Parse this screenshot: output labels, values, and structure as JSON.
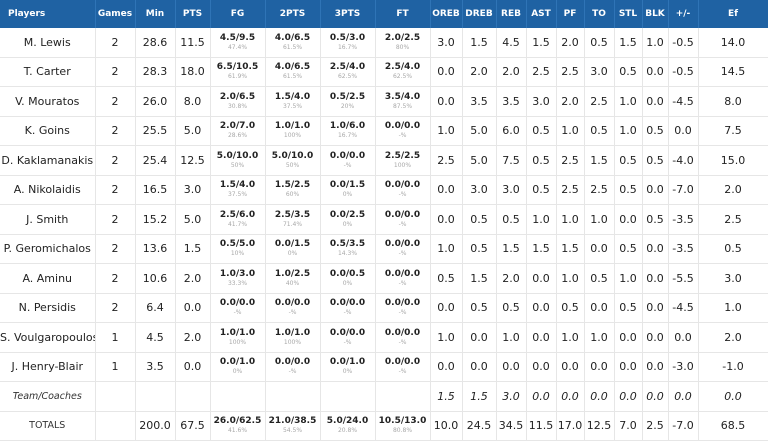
{
  "headers": [
    "Players",
    "Games",
    "Min",
    "PTS",
    "FG",
    "2PTS",
    "3PTS",
    "FT",
    "OREB",
    "DREB",
    "REB",
    "AST",
    "PF",
    "TO",
    "STL",
    "BLK",
    "+/-",
    "Ef"
  ],
  "players": [
    {
      "name": "M. Lewis",
      "games": "2",
      "min": "28.6",
      "pts": "11.5",
      "fg": "4.5/9.5",
      "fg_pct": "47.4%",
      "p2": "4.0/6.5",
      "p2_pct": "61.5%",
      "p3": "0.5/3.0",
      "p3_pct": "16.7%",
      "ft": "2.0/2.5",
      "ft_pct": "80%",
      "oreb": "3.0",
      "dreb": "1.5",
      "reb": "4.5",
      "ast": "1.5",
      "pf": "2.0",
      "to": "0.5",
      "stl": "1.5",
      "blk": "1.0",
      "pm": "-0.5",
      "ef": "14.0"
    },
    {
      "name": "T. Carter",
      "games": "2",
      "min": "28.3",
      "pts": "18.0",
      "fg": "6.5/10.5",
      "fg_pct": "61.9%",
      "p2": "4.0/6.5",
      "p2_pct": "61.5%",
      "p3": "2.5/4.0",
      "p3_pct": "62.5%",
      "ft": "2.5/4.0",
      "ft_pct": "62.5%",
      "oreb": "0.0",
      "dreb": "2.0",
      "reb": "2.0",
      "ast": "2.5",
      "pf": "2.5",
      "to": "3.0",
      "stl": "0.5",
      "blk": "0.0",
      "pm": "-0.5",
      "ef": "14.5"
    },
    {
      "name": "V. Mouratos",
      "games": "2",
      "min": "26.0",
      "pts": "8.0",
      "fg": "2.0/6.5",
      "fg_pct": "30.8%",
      "p2": "1.5/4.0",
      "p2_pct": "37.5%",
      "p3": "0.5/2.5",
      "p3_pct": "20%",
      "ft": "3.5/4.0",
      "ft_pct": "87.5%",
      "oreb": "0.0",
      "dreb": "3.5",
      "reb": "3.5",
      "ast": "3.0",
      "pf": "2.0",
      "to": "2.5",
      "stl": "1.0",
      "blk": "0.0",
      "pm": "-4.5",
      "ef": "8.0"
    },
    {
      "name": "K. Goins",
      "games": "2",
      "min": "25.5",
      "pts": "5.0",
      "fg": "2.0/7.0",
      "fg_pct": "28.6%",
      "p2": "1.0/1.0",
      "p2_pct": "100%",
      "p3": "1.0/6.0",
      "p3_pct": "16.7%",
      "ft": "0.0/0.0",
      "ft_pct": "-%",
      "oreb": "1.0",
      "dreb": "5.0",
      "reb": "6.0",
      "ast": "0.5",
      "pf": "1.0",
      "to": "0.5",
      "stl": "1.0",
      "blk": "0.5",
      "pm": "0.0",
      "ef": "7.5"
    },
    {
      "name": "D. Kaklamanakis",
      "games": "2",
      "min": "25.4",
      "pts": "12.5",
      "fg": "5.0/10.0",
      "fg_pct": "50%",
      "p2": "5.0/10.0",
      "p2_pct": "50%",
      "p3": "0.0/0.0",
      "p3_pct": "-%",
      "ft": "2.5/2.5",
      "ft_pct": "100%",
      "oreb": "2.5",
      "dreb": "5.0",
      "reb": "7.5",
      "ast": "0.5",
      "pf": "2.5",
      "to": "1.5",
      "stl": "0.5",
      "blk": "0.5",
      "pm": "-4.0",
      "ef": "15.0"
    },
    {
      "name": "A. Nikolaidis",
      "games": "2",
      "min": "16.5",
      "pts": "3.0",
      "fg": "1.5/4.0",
      "fg_pct": "37.5%",
      "p2": "1.5/2.5",
      "p2_pct": "60%",
      "p3": "0.0/1.5",
      "p3_pct": "0%",
      "ft": "0.0/0.0",
      "ft_pct": "-%",
      "oreb": "0.0",
      "dreb": "3.0",
      "reb": "3.0",
      "ast": "0.5",
      "pf": "2.5",
      "to": "2.5",
      "stl": "0.5",
      "blk": "0.0",
      "pm": "-7.0",
      "ef": "2.0"
    },
    {
      "name": "J. Smith",
      "games": "2",
      "min": "15.2",
      "pts": "5.0",
      "fg": "2.5/6.0",
      "fg_pct": "41.7%",
      "p2": "2.5/3.5",
      "p2_pct": "71.4%",
      "p3": "0.0/2.5",
      "p3_pct": "0%",
      "ft": "0.0/0.0",
      "ft_pct": "-%",
      "oreb": "0.0",
      "dreb": "0.5",
      "reb": "0.5",
      "ast": "1.0",
      "pf": "1.0",
      "to": "1.0",
      "stl": "0.0",
      "blk": "0.5",
      "pm": "-3.5",
      "ef": "2.5"
    },
    {
      "name": "P. Geromichalos",
      "games": "2",
      "min": "13.6",
      "pts": "1.5",
      "fg": "0.5/5.0",
      "fg_pct": "10%",
      "p2": "0.0/1.5",
      "p2_pct": "0%",
      "p3": "0.5/3.5",
      "p3_pct": "14.3%",
      "ft": "0.0/0.0",
      "ft_pct": "-%",
      "oreb": "1.0",
      "dreb": "0.5",
      "reb": "1.5",
      "ast": "1.5",
      "pf": "1.5",
      "to": "0.0",
      "stl": "0.5",
      "blk": "0.0",
      "pm": "-3.5",
      "ef": "0.5"
    },
    {
      "name": "A. Aminu",
      "games": "2",
      "min": "10.6",
      "pts": "2.0",
      "fg": "1.0/3.0",
      "fg_pct": "33.3%",
      "p2": "1.0/2.5",
      "p2_pct": "40%",
      "p3": "0.0/0.5",
      "p3_pct": "0%",
      "ft": "0.0/0.0",
      "ft_pct": "-%",
      "oreb": "0.5",
      "dreb": "1.5",
      "reb": "2.0",
      "ast": "0.0",
      "pf": "1.0",
      "to": "0.5",
      "stl": "1.0",
      "blk": "0.0",
      "pm": "-5.5",
      "ef": "3.0"
    },
    {
      "name": "N. Persidis",
      "games": "2",
      "min": "6.4",
      "pts": "0.0",
      "fg": "0.0/0.0",
      "fg_pct": "-%",
      "p2": "0.0/0.0",
      "p2_pct": "-%",
      "p3": "0.0/0.0",
      "p3_pct": "-%",
      "ft": "0.0/0.0",
      "ft_pct": "-%",
      "oreb": "0.0",
      "dreb": "0.5",
      "reb": "0.5",
      "ast": "0.0",
      "pf": "0.5",
      "to": "0.0",
      "stl": "0.5",
      "blk": "0.0",
      "pm": "-4.5",
      "ef": "1.0"
    },
    {
      "name": "S. Voulgaropoulos",
      "games": "1",
      "min": "4.5",
      "pts": "2.0",
      "fg": "1.0/1.0",
      "fg_pct": "100%",
      "p2": "1.0/1.0",
      "p2_pct": "100%",
      "p3": "0.0/0.0",
      "p3_pct": "-%",
      "ft": "0.0/0.0",
      "ft_pct": "-%",
      "oreb": "1.0",
      "dreb": "0.0",
      "reb": "1.0",
      "ast": "0.0",
      "pf": "1.0",
      "to": "1.0",
      "stl": "0.0",
      "blk": "0.0",
      "pm": "0.0",
      "ef": "2.0"
    },
    {
      "name": "J. Henry-Blair",
      "games": "1",
      "min": "3.5",
      "pts": "0.0",
      "fg": "0.0/1.0",
      "fg_pct": "0%",
      "p2": "0.0/0.0",
      "p2_pct": "-%",
      "p3": "0.0/1.0",
      "p3_pct": "0%",
      "ft": "0.0/0.0",
      "ft_pct": "-%",
      "oreb": "0.0",
      "dreb": "0.0",
      "reb": "0.0",
      "ast": "0.0",
      "pf": "0.0",
      "to": "0.0",
      "stl": "0.0",
      "blk": "0.0",
      "pm": "-3.0",
      "ef": "-1.0"
    }
  ],
  "team": {
    "name": "Team/Coaches",
    "oreb": "1.5",
    "dreb": "1.5",
    "reb": "3.0",
    "ast": "0.0",
    "pf": "0.0",
    "to": "0.0",
    "stl": "0.0",
    "blk": "0.0",
    "pm": "0.0",
    "ef": "0.0"
  },
  "totals": {
    "name": "TOTALS",
    "min": "200.0",
    "pts": "67.5",
    "fg": "26.0/62.5",
    "fg_pct": "41.6%",
    "p2": "21.0/38.5",
    "p2_pct": "54.5%",
    "p3": "5.0/24.0",
    "p3_pct": "20.8%",
    "ft": "10.5/13.0",
    "ft_pct": "80.8%",
    "oreb": "10.0",
    "dreb": "24.5",
    "reb": "34.5",
    "ast": "11.5",
    "pf": "17.0",
    "to": "12.5",
    "stl": "7.0",
    "blk": "2.5",
    "pm": "-7.0",
    "ef": "68.5"
  }
}
